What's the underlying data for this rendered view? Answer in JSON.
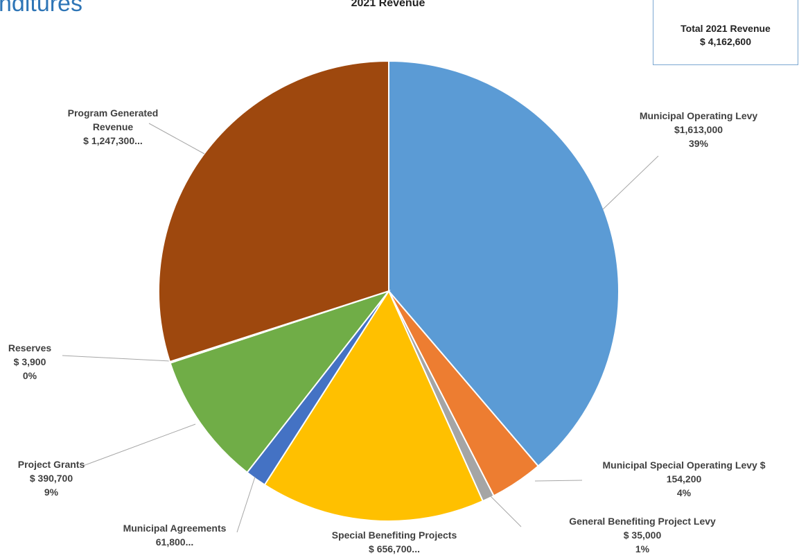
{
  "heading": "nditures",
  "total_box": {
    "line1": "Total 2021 Revenue",
    "line2": "$ 4,162,600"
  },
  "chart_data": {
    "type": "pie",
    "title": "2021 Revenue",
    "total": 4162600,
    "slices": [
      {
        "name": "Municipal Operating Levy",
        "value": 1613000,
        "color": "#5b9bd5",
        "label_lines": [
          "Municipal Operating Levy",
          "$1,613,000",
          "39%"
        ]
      },
      {
        "name": "Municipal Special Operating Levy",
        "value": 154200,
        "color": "#ed7d31",
        "label_lines": [
          "Municipal Special Operating Levy $",
          "154,200",
          "4%"
        ]
      },
      {
        "name": "General Benefiting Project Levy",
        "value": 35000,
        "color": "#a5a5a5",
        "label_lines": [
          "General Benefiting Project Levy",
          "$ 35,000",
          "1%"
        ]
      },
      {
        "name": "Special Benefiting Projects",
        "value": 656700,
        "color": "#ffc000",
        "label_lines": [
          "Special Benefiting Projects",
          "$ 656,700..."
        ]
      },
      {
        "name": "Municipal Agreements",
        "value": 61800,
        "color": "#4472c4",
        "label_lines": [
          "Municipal Agreements",
          "61,800..."
        ]
      },
      {
        "name": "Project Grants",
        "value": 390700,
        "color": "#70ad47",
        "label_lines": [
          "Project Grants",
          "$ 390,700",
          "9%"
        ]
      },
      {
        "name": "Reserves",
        "value": 3900,
        "color": "#264478",
        "label_lines": [
          "Reserves",
          "$ 3,900",
          "0%"
        ]
      },
      {
        "name": "Program Generated Revenue",
        "value": 1247300,
        "color": "#9e480e",
        "label_lines": [
          "Program Generated",
          "Revenue",
          "$ 1,247,300..."
        ]
      }
    ]
  }
}
